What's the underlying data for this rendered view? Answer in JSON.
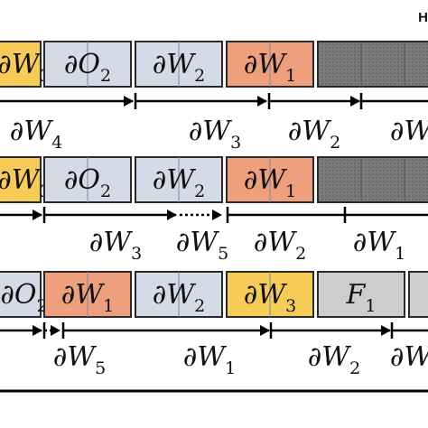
{
  "corner_mark": "H",
  "colors": {
    "yellow": "#f7cc56",
    "blue": "#d5dbe6",
    "orange": "#ee9f7b",
    "gray_dark": "#7b7b7b",
    "gray_light": "#cdcdcd",
    "edge": "#2a2a2a"
  },
  "rows": [
    {
      "blocks": [
        {
          "label": "∂W",
          "sub": "3",
          "fill": "yellow"
        },
        {
          "label": "∂O",
          "sub": "2",
          "fill": "blue"
        },
        {
          "label": "∂W",
          "sub": "2",
          "fill": "blue"
        },
        {
          "label": "∂W",
          "sub": "1",
          "fill": "orange"
        },
        {
          "label": "",
          "sub": "",
          "fill": "gray_dark"
        }
      ],
      "intervals": [
        {
          "label": "∂W",
          "sub": "4",
          "dotted": false
        },
        {
          "label": "∂W",
          "sub": "3",
          "dotted": false
        },
        {
          "label": "∂W",
          "sub": "2",
          "dotted": false
        },
        {
          "label": "∂W",
          "sub": "",
          "dotted": false
        }
      ]
    },
    {
      "blocks": [
        {
          "label": "∂W",
          "sub": "3",
          "fill": "yellow"
        },
        {
          "label": "∂O",
          "sub": "2",
          "fill": "blue"
        },
        {
          "label": "∂W",
          "sub": "2",
          "fill": "blue"
        },
        {
          "label": "∂W",
          "sub": "1",
          "fill": "orange"
        },
        {
          "label": "",
          "sub": "",
          "fill": "gray_dark"
        }
      ],
      "intervals": [
        {
          "label": "",
          "sub": "",
          "dotted": false
        },
        {
          "label": "∂W",
          "sub": "3",
          "dotted": false
        },
        {
          "label": "∂W",
          "sub": "5",
          "dotted": true
        },
        {
          "label": "∂W",
          "sub": "2",
          "dotted": false
        },
        {
          "label": "∂W",
          "sub": "1",
          "dotted": false
        }
      ]
    },
    {
      "blocks": [
        {
          "label": "∂O",
          "sub": "2",
          "fill": "blue"
        },
        {
          "label": "∂W",
          "sub": "1",
          "fill": "orange"
        },
        {
          "label": "∂W",
          "sub": "2",
          "fill": "blue"
        },
        {
          "label": "∂W",
          "sub": "3",
          "fill": "yellow"
        },
        {
          "label": "F",
          "sub": "1",
          "fill": "gray_light"
        },
        {
          "label": "",
          "sub": "",
          "fill": "gray_light"
        }
      ],
      "intervals": [
        {
          "label": "",
          "sub": "",
          "dotted": false
        },
        {
          "label": "∂W",
          "sub": "5",
          "dotted": true
        },
        {
          "label": "∂W",
          "sub": "1",
          "dotted": false
        },
        {
          "label": "∂W",
          "sub": "2",
          "dotted": false
        },
        {
          "label": "∂W",
          "sub": "",
          "dotted": false
        }
      ]
    }
  ]
}
